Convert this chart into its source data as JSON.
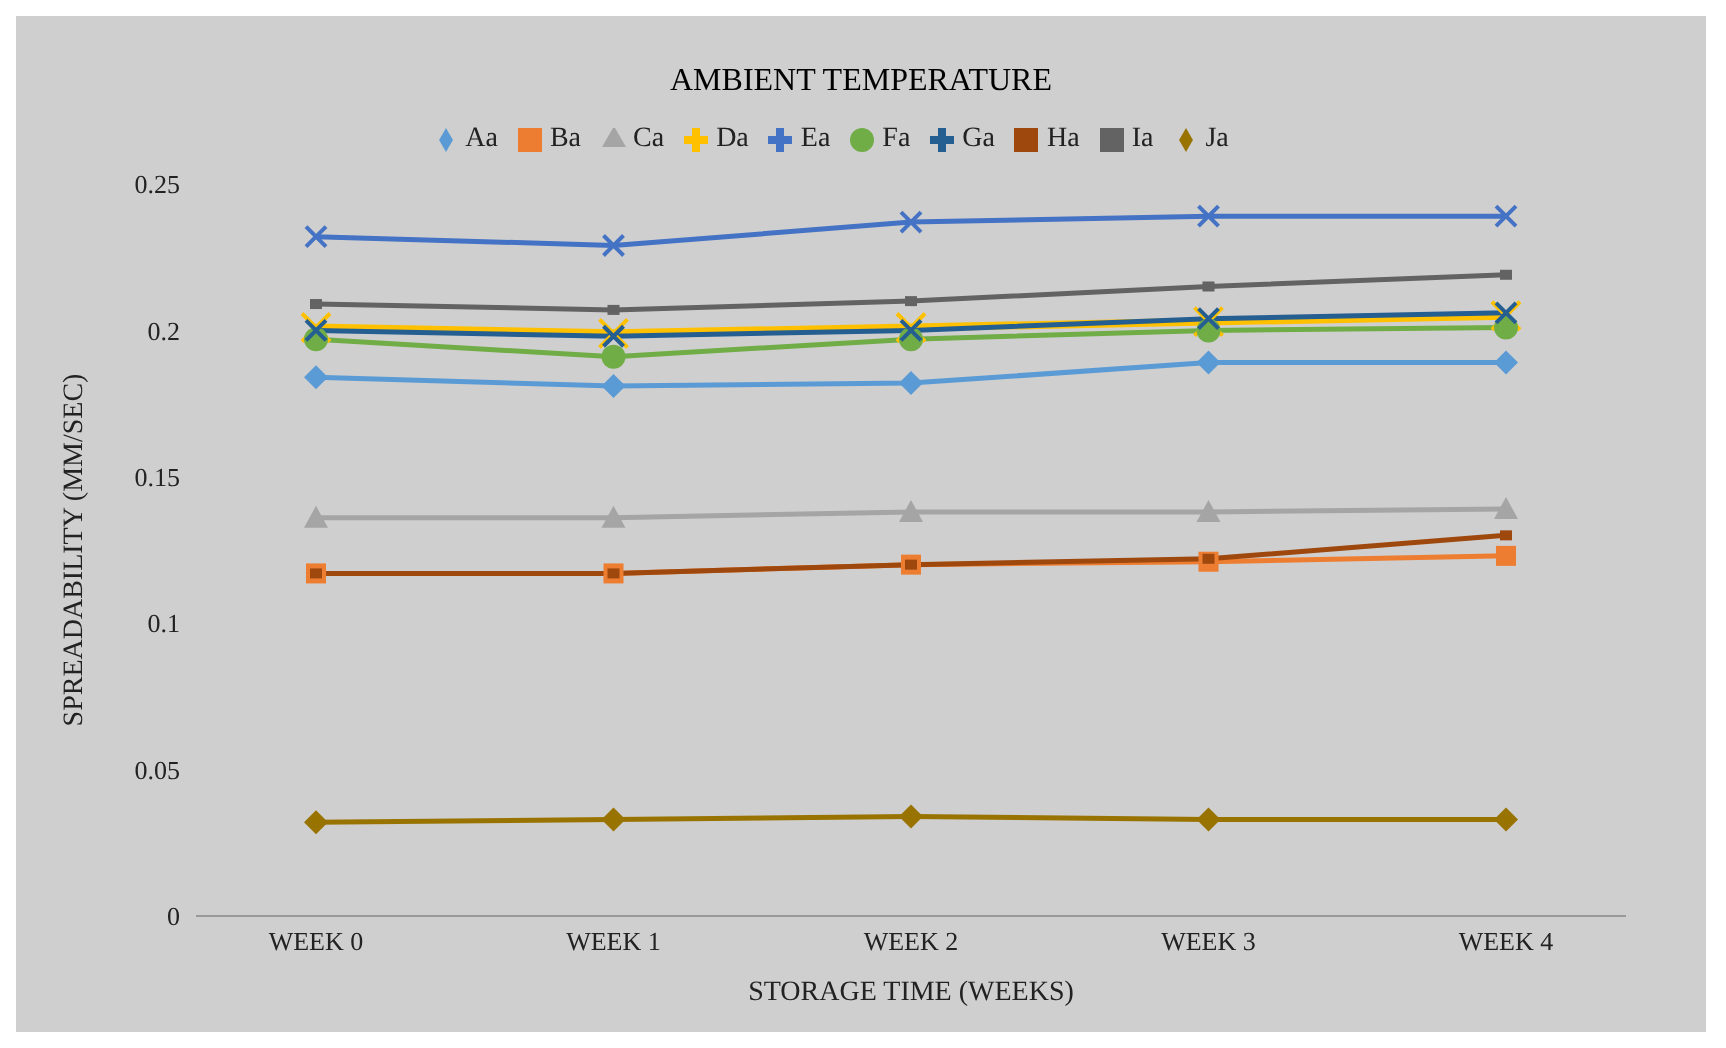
{
  "chart_data": {
    "type": "line",
    "title": "AMBIENT TEMPERATURE",
    "xlabel": "STORAGE TIME (WEEKS)",
    "ylabel": "SPREADABILITY (MM/SEC)",
    "categories": [
      "WEEK 0",
      "WEEK 1",
      "WEEK 2",
      "WEEK 3",
      "WEEK 4"
    ],
    "series": [
      {
        "name": "Aa",
        "color": "#5b9bd5",
        "marker": "diamond",
        "values": [
          0.184,
          0.181,
          0.182,
          0.189,
          0.189
        ]
      },
      {
        "name": "Ba",
        "color": "#ed7d31",
        "marker": "square",
        "values": [
          0.117,
          0.117,
          0.12,
          0.121,
          0.123
        ]
      },
      {
        "name": "Ca",
        "color": "#a5a5a5",
        "marker": "triangle",
        "values": [
          0.136,
          0.136,
          0.138,
          0.138,
          0.139
        ]
      },
      {
        "name": "Da",
        "color": "#ffc000",
        "marker": "cross",
        "values": [
          0.201,
          0.199,
          0.201,
          0.203,
          0.205
        ]
      },
      {
        "name": "Ea",
        "color": "#4472c4",
        "marker": "cross",
        "values": [
          0.232,
          0.229,
          0.237,
          0.239,
          0.239
        ]
      },
      {
        "name": "Fa",
        "color": "#70ad47",
        "marker": "circle",
        "values": [
          0.197,
          0.191,
          0.197,
          0.2,
          0.201
        ]
      },
      {
        "name": "Ga",
        "color": "#255e91",
        "marker": "cross",
        "values": [
          0.2,
          0.198,
          0.2,
          0.204,
          0.206
        ]
      },
      {
        "name": "Ha",
        "color": "#9e480e",
        "marker": "square",
        "values": [
          0.117,
          0.117,
          0.12,
          0.122,
          0.13
        ]
      },
      {
        "name": "Ia",
        "color": "#636363",
        "marker": "square",
        "values": [
          0.209,
          0.207,
          0.21,
          0.215,
          0.219
        ]
      },
      {
        "name": "Ja",
        "color": "#997300",
        "marker": "diamond",
        "values": [
          0.032,
          0.033,
          0.034,
          0.033,
          0.033
        ]
      }
    ],
    "ylim": [
      0,
      0.25
    ],
    "yticks": [
      0,
      0.05,
      0.1,
      0.15,
      0.2,
      0.25
    ],
    "legend": "top",
    "line_style": "solid"
  }
}
